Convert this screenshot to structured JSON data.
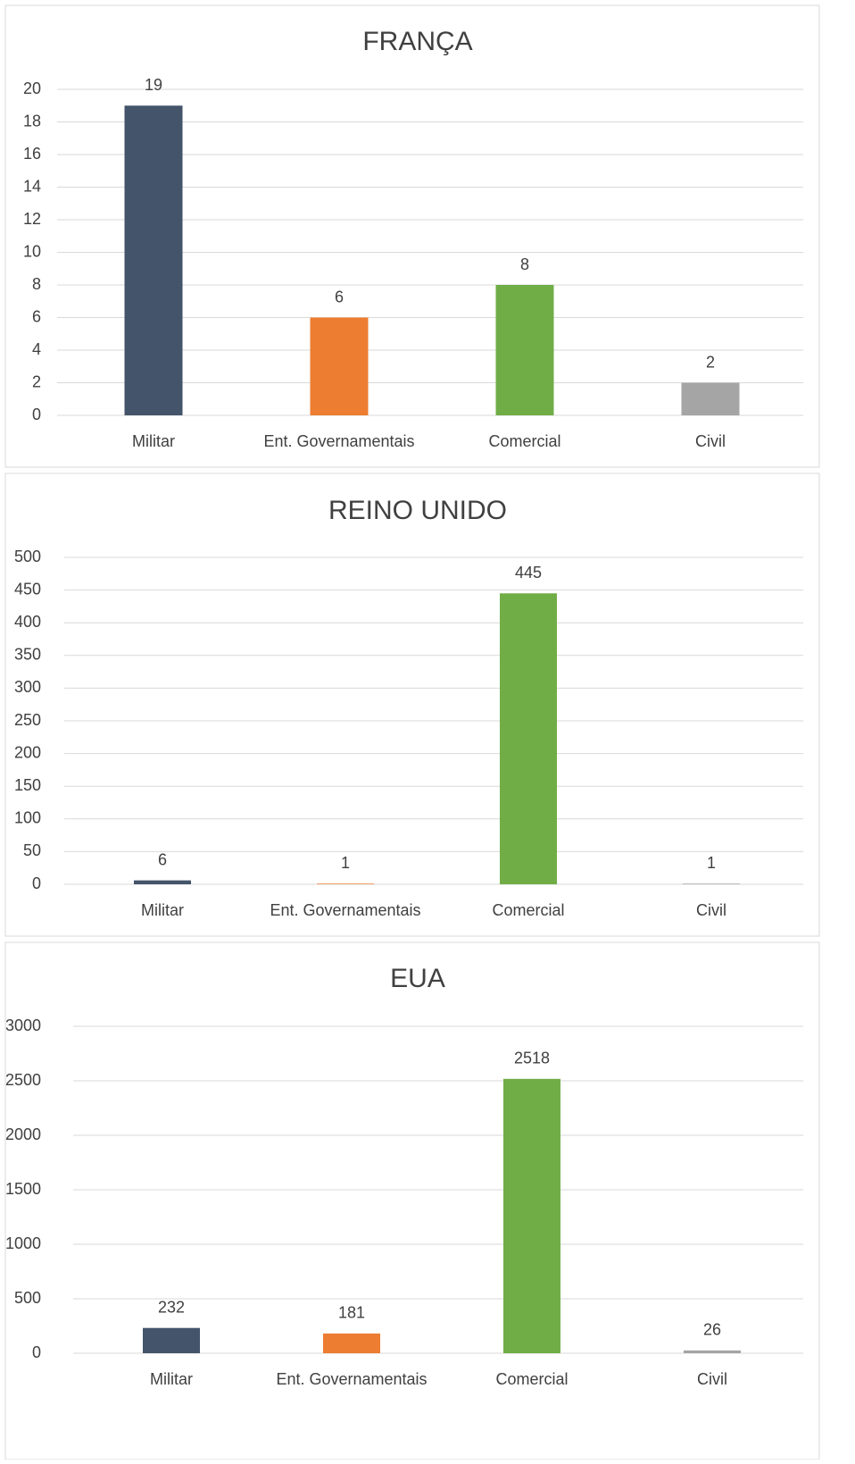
{
  "chart_data": [
    {
      "type": "bar",
      "title": "FRANÇA",
      "categories": [
        "Militar",
        "Ent. Governamentais",
        "Comercial",
        "Civil"
      ],
      "values": [
        19,
        6,
        8,
        2
      ],
      "colors": [
        "#44546a",
        "#ed7d31",
        "#70ad47",
        "#a5a5a5"
      ],
      "ylim": [
        0,
        20
      ],
      "yticks": [
        0,
        2,
        4,
        6,
        8,
        10,
        12,
        14,
        16,
        18,
        20
      ],
      "grid": true
    },
    {
      "type": "bar",
      "title": "REINO UNIDO",
      "categories": [
        "Militar",
        "Ent. Governamentais",
        "Comercial",
        "Civil"
      ],
      "values": [
        6,
        1,
        445,
        1
      ],
      "colors": [
        "#44546a",
        "#ed7d31",
        "#70ad47",
        "#a5a5a5"
      ],
      "ylim": [
        0,
        500
      ],
      "yticks": [
        0,
        50,
        100,
        150,
        200,
        250,
        300,
        350,
        400,
        450,
        500
      ],
      "grid": true
    },
    {
      "type": "bar",
      "title": "EUA",
      "categories": [
        "Militar",
        "Ent. Governamentais",
        "Comercial",
        "Civil"
      ],
      "values": [
        232,
        181,
        2518,
        26
      ],
      "colors": [
        "#44546a",
        "#ed7d31",
        "#70ad47",
        "#a5a5a5"
      ],
      "ylim": [
        0,
        3000
      ],
      "yticks": [
        0,
        500,
        1000,
        1500,
        2000,
        2500,
        3000
      ],
      "grid": true
    }
  ]
}
